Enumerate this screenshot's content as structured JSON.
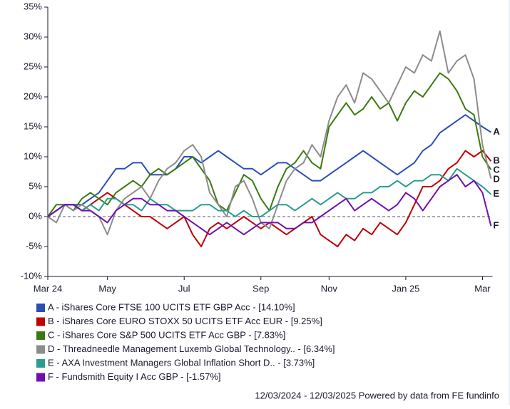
{
  "chart_data": {
    "type": "line",
    "categories": [
      "Mar 24",
      null,
      null,
      null,
      null,
      null,
      null,
      "May",
      null,
      null,
      null,
      null,
      null,
      null,
      null,
      null,
      "Jul",
      null,
      null,
      null,
      null,
      null,
      null,
      null,
      null,
      "Sep",
      null,
      null,
      null,
      null,
      null,
      null,
      null,
      "Nov",
      null,
      null,
      null,
      null,
      null,
      null,
      null,
      null,
      "Jan 25",
      null,
      null,
      null,
      null,
      null,
      null,
      null,
      null,
      "Mar",
      null
    ],
    "ylim": [
      -10,
      35
    ],
    "yticks": [
      {
        "value": -10,
        "label": "-10%"
      },
      {
        "value": -5,
        "label": "-5%"
      },
      {
        "value": 0,
        "label": "0%"
      },
      {
        "value": 5,
        "label": "5%"
      },
      {
        "value": 10,
        "label": "10%"
      },
      {
        "value": 15,
        "label": "15%"
      },
      {
        "value": 20,
        "label": "20%"
      },
      {
        "value": 25,
        "label": "25%"
      },
      {
        "value": 30,
        "label": "30%"
      },
      {
        "value": 35,
        "label": "35%"
      }
    ],
    "zero_line": "dashed",
    "legend": "bottom",
    "series": [
      {
        "name": "A - iShares Core FTSE 100 UCITS ETF GBP Acc - [14.10%]",
        "label": "A",
        "color": "#2a4fb8",
        "values": [
          0,
          1,
          2,
          2,
          2,
          3,
          4,
          6,
          8,
          8,
          9,
          9,
          7,
          7,
          7,
          8,
          10,
          10,
          9,
          10,
          11,
          10,
          9,
          8,
          8,
          7,
          8,
          9,
          9,
          8,
          7,
          6,
          6,
          7,
          8,
          9,
          10,
          11,
          10,
          9,
          8,
          7,
          8,
          9,
          11,
          12,
          14,
          15,
          16,
          17,
          16,
          15,
          14.1
        ]
      },
      {
        "name": "B - iShares Core EURO STOXX 50 UCITS ETF Acc EUR - [9.25%]",
        "label": "B",
        "color": "#c00000",
        "values": [
          0,
          1,
          2,
          2,
          1,
          2,
          3,
          4,
          3,
          2,
          1,
          0,
          0,
          -1,
          -2,
          -1,
          0,
          -3,
          -5,
          -2,
          -1,
          -2,
          -1,
          0,
          -1,
          -2,
          -1,
          -2,
          -3,
          -2,
          -1,
          0,
          -3,
          -4,
          -5,
          -3,
          -4,
          -2,
          -3,
          -1,
          -2,
          -3,
          -1,
          2,
          5,
          5,
          6,
          8,
          9,
          11,
          10,
          11,
          9.25
        ]
      },
      {
        "name": "C - iShares Core S&P 500 UCITS ETF Acc GBP - [7.83%]",
        "label": "C",
        "color": "#3a7a10",
        "values": [
          0,
          2,
          2,
          1,
          3,
          4,
          3,
          2,
          4,
          5,
          6,
          5,
          7,
          8,
          7,
          8,
          9,
          10,
          8,
          6,
          2,
          1,
          4,
          7,
          6,
          3,
          1,
          5,
          8,
          9,
          11,
          9,
          8,
          15,
          17,
          19,
          17,
          18,
          20,
          18,
          19,
          16,
          19,
          21,
          20,
          22,
          24,
          23,
          21,
          18,
          17,
          10,
          7.83
        ]
      },
      {
        "name": "D - Threadneedle Management Luxemb Global Technology.. - [6.34%]",
        "label": "D",
        "color": "#8c8c8c",
        "values": [
          0,
          -1,
          2,
          1,
          2,
          1,
          0,
          -3,
          1,
          3,
          4,
          5,
          3,
          6,
          8,
          9,
          11,
          12,
          10,
          4,
          2,
          0,
          5,
          6,
          3,
          -1,
          -2,
          2,
          6,
          8,
          9,
          12,
          10,
          16,
          20,
          22,
          19,
          24,
          23,
          21,
          19,
          22,
          25,
          24,
          27,
          26,
          31,
          24,
          26,
          27,
          23,
          12,
          6.34
        ]
      },
      {
        "name": "E - AXA Investment Managers Global Inflation Short D.. - [3.73%]",
        "label": "E",
        "color": "#2a9d8f",
        "values": [
          0,
          1,
          2,
          2,
          1,
          2,
          1,
          3,
          3,
          2,
          2,
          1,
          3,
          2,
          2,
          1,
          1,
          1,
          2,
          2,
          1,
          1,
          0,
          1,
          0,
          0,
          1,
          2,
          2,
          1,
          2,
          3,
          2,
          3,
          4,
          3,
          3,
          4,
          4,
          5,
          5,
          6,
          5,
          6,
          6,
          7,
          7,
          6,
          8,
          7,
          6,
          5,
          3.73
        ]
      },
      {
        "name": "F - Fundsmith Equity I Acc GBP - [-1.57%]",
        "label": "F",
        "color": "#7010b0",
        "values": [
          0,
          1,
          2,
          2,
          1,
          1,
          0,
          -1,
          1,
          2,
          3,
          3,
          2,
          2,
          1,
          1,
          0,
          -1,
          -2,
          -3,
          -2,
          -1,
          -2,
          -3,
          -2,
          -1,
          -1,
          -1,
          -2,
          -2,
          -1,
          -1,
          0,
          1,
          2,
          3,
          1,
          2,
          3,
          2,
          1,
          2,
          4,
          3,
          1,
          3,
          5,
          6,
          7,
          5,
          6,
          4,
          -1.57
        ]
      }
    ],
    "footer": "12/03/2024 - 12/03/2025 Powered by data from FE fundinfo"
  }
}
